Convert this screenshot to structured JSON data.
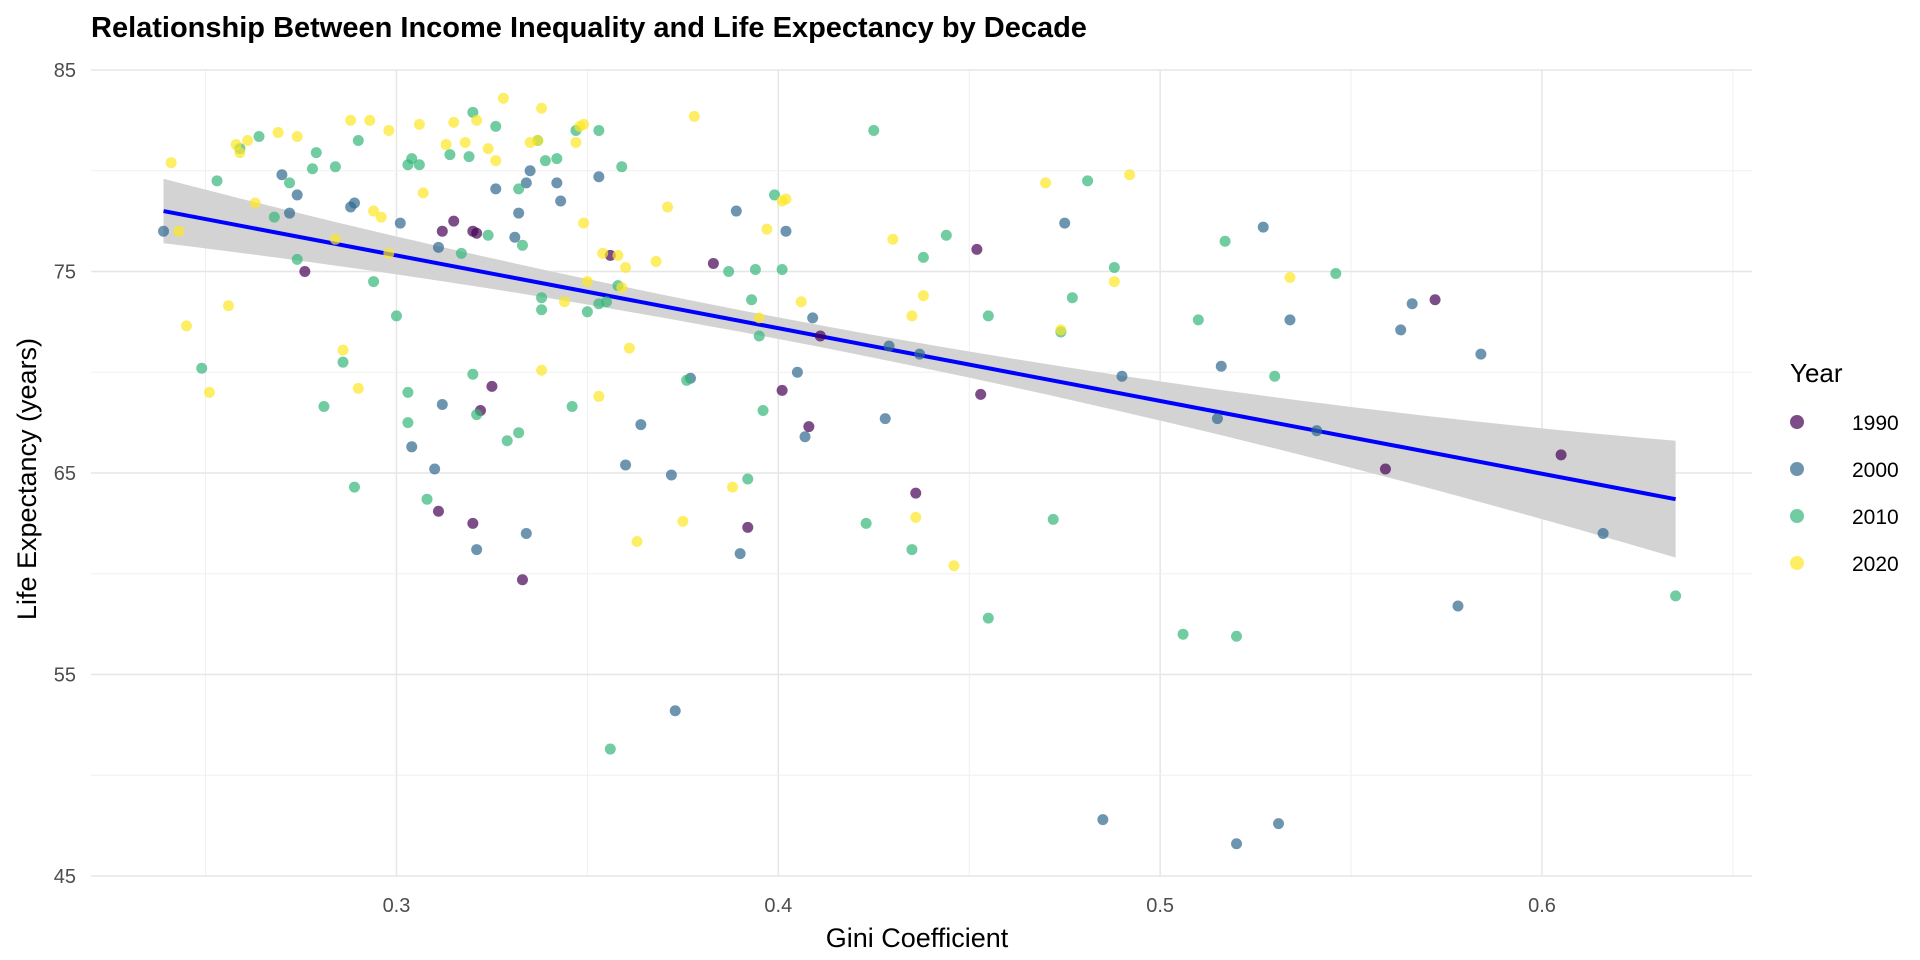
{
  "chart_data": {
    "type": "scatter",
    "title": "Relationship Between Income Inequality and Life Expectancy by Decade",
    "xlabel": "Gini Coefficient",
    "ylabel": "Life Expectancy (years)",
    "xlim": [
      0.22,
      0.655
    ],
    "ylim": [
      45,
      85
    ],
    "x_ticks": [
      0.3,
      0.4,
      0.5,
      0.6
    ],
    "x_tick_labels": [
      "0.3",
      "0.4",
      "0.5",
      "0.6"
    ],
    "y_ticks": [
      45,
      55,
      65,
      75,
      85
    ],
    "y_tick_labels": [
      "45",
      "55",
      "65",
      "75",
      "85"
    ],
    "grid": true,
    "legend": {
      "title": "Year",
      "placement": "right"
    },
    "point_alpha": 0.7,
    "series": [
      {
        "name": "1990",
        "color": "#440154",
        "points": [
          [
            0.276,
            75.0
          ],
          [
            0.312,
            77.0
          ],
          [
            0.315,
            77.5
          ],
          [
            0.32,
            77.0
          ],
          [
            0.321,
            76.9
          ],
          [
            0.322,
            68.1
          ],
          [
            0.325,
            69.3
          ],
          [
            0.311,
            63.1
          ],
          [
            0.32,
            62.5
          ],
          [
            0.333,
            59.7
          ],
          [
            0.356,
            75.8
          ],
          [
            0.383,
            75.4
          ],
          [
            0.392,
            62.3
          ],
          [
            0.401,
            69.1
          ],
          [
            0.408,
            67.3
          ],
          [
            0.411,
            71.8
          ],
          [
            0.436,
            64.0
          ],
          [
            0.452,
            76.1
          ],
          [
            0.453,
            68.9
          ],
          [
            0.559,
            65.2
          ],
          [
            0.572,
            73.6
          ],
          [
            0.605,
            65.9
          ]
        ]
      },
      {
        "name": "2000",
        "color": "#31688e",
        "points": [
          [
            0.239,
            77.0
          ],
          [
            0.27,
            79.8
          ],
          [
            0.272,
            77.9
          ],
          [
            0.274,
            78.8
          ],
          [
            0.288,
            78.2
          ],
          [
            0.289,
            78.4
          ],
          [
            0.301,
            77.4
          ],
          [
            0.311,
            76.2
          ],
          [
            0.312,
            68.4
          ],
          [
            0.304,
            66.3
          ],
          [
            0.31,
            65.2
          ],
          [
            0.321,
            61.2
          ],
          [
            0.326,
            79.1
          ],
          [
            0.331,
            76.7
          ],
          [
            0.332,
            77.9
          ],
          [
            0.334,
            79.4
          ],
          [
            0.335,
            80.0
          ],
          [
            0.342,
            79.4
          ],
          [
            0.343,
            78.5
          ],
          [
            0.353,
            79.7
          ],
          [
            0.334,
            62.0
          ],
          [
            0.36,
            65.4
          ],
          [
            0.364,
            67.4
          ],
          [
            0.372,
            64.9
          ],
          [
            0.373,
            53.2
          ],
          [
            0.377,
            69.7
          ],
          [
            0.389,
            78.0
          ],
          [
            0.39,
            61.0
          ],
          [
            0.402,
            77.0
          ],
          [
            0.405,
            70.0
          ],
          [
            0.407,
            66.8
          ],
          [
            0.409,
            72.7
          ],
          [
            0.429,
            71.3
          ],
          [
            0.428,
            67.7
          ],
          [
            0.437,
            70.9
          ],
          [
            0.475,
            77.4
          ],
          [
            0.485,
            47.8
          ],
          [
            0.49,
            69.8
          ],
          [
            0.515,
            67.7
          ],
          [
            0.516,
            70.3
          ],
          [
            0.52,
            46.6
          ],
          [
            0.527,
            77.2
          ],
          [
            0.531,
            47.6
          ],
          [
            0.534,
            72.6
          ],
          [
            0.541,
            67.1
          ],
          [
            0.563,
            72.1
          ],
          [
            0.566,
            73.4
          ],
          [
            0.578,
            58.4
          ],
          [
            0.584,
            70.9
          ],
          [
            0.616,
            62.0
          ]
        ]
      },
      {
        "name": "2010",
        "color": "#35b779",
        "points": [
          [
            0.249,
            70.2
          ],
          [
            0.253,
            79.5
          ],
          [
            0.259,
            81.1
          ],
          [
            0.264,
            81.7
          ],
          [
            0.268,
            77.7
          ],
          [
            0.272,
            79.4
          ],
          [
            0.274,
            75.6
          ],
          [
            0.278,
            80.1
          ],
          [
            0.279,
            80.9
          ],
          [
            0.281,
            68.3
          ],
          [
            0.284,
            80.2
          ],
          [
            0.286,
            70.5
          ],
          [
            0.289,
            64.3
          ],
          [
            0.29,
            81.5
          ],
          [
            0.294,
            74.5
          ],
          [
            0.3,
            72.8
          ],
          [
            0.303,
            80.3
          ],
          [
            0.304,
            80.6
          ],
          [
            0.303,
            69.0
          ],
          [
            0.303,
            67.5
          ],
          [
            0.306,
            80.3
          ],
          [
            0.308,
            63.7
          ],
          [
            0.314,
            80.8
          ],
          [
            0.317,
            75.9
          ],
          [
            0.319,
            80.7
          ],
          [
            0.32,
            69.9
          ],
          [
            0.32,
            82.9
          ],
          [
            0.321,
            67.9
          ],
          [
            0.324,
            76.8
          ],
          [
            0.326,
            82.2
          ],
          [
            0.329,
            66.6
          ],
          [
            0.332,
            67.0
          ],
          [
            0.332,
            79.1
          ],
          [
            0.333,
            76.3
          ],
          [
            0.337,
            81.5
          ],
          [
            0.338,
            73.1
          ],
          [
            0.338,
            73.7
          ],
          [
            0.339,
            80.5
          ],
          [
            0.342,
            80.6
          ],
          [
            0.346,
            68.3
          ],
          [
            0.347,
            82.0
          ],
          [
            0.35,
            73.0
          ],
          [
            0.353,
            82.0
          ],
          [
            0.353,
            73.4
          ],
          [
            0.355,
            73.5
          ],
          [
            0.356,
            51.3
          ],
          [
            0.358,
            74.3
          ],
          [
            0.359,
            80.2
          ],
          [
            0.376,
            69.6
          ],
          [
            0.387,
            75.0
          ],
          [
            0.392,
            64.7
          ],
          [
            0.393,
            73.6
          ],
          [
            0.394,
            75.1
          ],
          [
            0.395,
            71.8
          ],
          [
            0.396,
            68.1
          ],
          [
            0.399,
            78.8
          ],
          [
            0.401,
            75.1
          ],
          [
            0.423,
            62.5
          ],
          [
            0.425,
            82.0
          ],
          [
            0.435,
            61.2
          ],
          [
            0.438,
            75.7
          ],
          [
            0.444,
            76.8
          ],
          [
            0.455,
            72.8
          ],
          [
            0.455,
            57.8
          ],
          [
            0.472,
            62.7
          ],
          [
            0.474,
            72.0
          ],
          [
            0.477,
            73.7
          ],
          [
            0.481,
            79.5
          ],
          [
            0.488,
            75.2
          ],
          [
            0.506,
            57.0
          ],
          [
            0.51,
            72.6
          ],
          [
            0.52,
            56.9
          ],
          [
            0.517,
            76.5
          ],
          [
            0.53,
            69.8
          ],
          [
            0.546,
            74.9
          ],
          [
            0.635,
            58.9
          ]
        ]
      },
      {
        "name": "2020",
        "color": "#fde725",
        "points": [
          [
            0.241,
            80.4
          ],
          [
            0.243,
            77.0
          ],
          [
            0.245,
            72.3
          ],
          [
            0.251,
            69.0
          ],
          [
            0.256,
            73.3
          ],
          [
            0.258,
            81.3
          ],
          [
            0.259,
            80.9
          ],
          [
            0.261,
            81.5
          ],
          [
            0.263,
            78.4
          ],
          [
            0.269,
            81.9
          ],
          [
            0.274,
            81.7
          ],
          [
            0.284,
            76.6
          ],
          [
            0.286,
            71.1
          ],
          [
            0.288,
            82.5
          ],
          [
            0.29,
            69.2
          ],
          [
            0.293,
            82.5
          ],
          [
            0.294,
            78.0
          ],
          [
            0.296,
            77.7
          ],
          [
            0.298,
            75.9
          ],
          [
            0.298,
            82.0
          ],
          [
            0.306,
            82.3
          ],
          [
            0.307,
            78.9
          ],
          [
            0.313,
            81.3
          ],
          [
            0.315,
            82.4
          ],
          [
            0.318,
            81.4
          ],
          [
            0.321,
            82.5
          ],
          [
            0.324,
            81.1
          ],
          [
            0.326,
            80.5
          ],
          [
            0.328,
            83.6
          ],
          [
            0.335,
            81.4
          ],
          [
            0.337,
            81.5
          ],
          [
            0.338,
            70.1
          ],
          [
            0.338,
            83.1
          ],
          [
            0.344,
            73.5
          ],
          [
            0.347,
            81.4
          ],
          [
            0.348,
            82.2
          ],
          [
            0.349,
            82.3
          ],
          [
            0.349,
            77.4
          ],
          [
            0.35,
            74.5
          ],
          [
            0.353,
            68.8
          ],
          [
            0.354,
            75.9
          ],
          [
            0.358,
            75.8
          ],
          [
            0.359,
            74.2
          ],
          [
            0.36,
            75.2
          ],
          [
            0.361,
            71.2
          ],
          [
            0.363,
            61.6
          ],
          [
            0.368,
            75.5
          ],
          [
            0.371,
            78.2
          ],
          [
            0.375,
            62.6
          ],
          [
            0.378,
            82.7
          ],
          [
            0.388,
            64.3
          ],
          [
            0.395,
            72.7
          ],
          [
            0.397,
            77.1
          ],
          [
            0.401,
            78.5
          ],
          [
            0.402,
            78.6
          ],
          [
            0.406,
            73.5
          ],
          [
            0.43,
            76.6
          ],
          [
            0.435,
            72.8
          ],
          [
            0.436,
            62.8
          ],
          [
            0.438,
            73.8
          ],
          [
            0.446,
            60.4
          ],
          [
            0.47,
            79.4
          ],
          [
            0.474,
            72.1
          ],
          [
            0.488,
            74.5
          ],
          [
            0.492,
            79.8
          ],
          [
            0.534,
            74.7
          ]
        ]
      }
    ],
    "trend_line": {
      "type": "linear",
      "color": "#0000ff",
      "x_range": [
        0.239,
        0.635
      ],
      "y_start": 78.0,
      "y_end": 63.7,
      "ci_band_color": "#d3d3d3",
      "ci_halfwidth_start": 1.6,
      "ci_halfwidth_mid": 0.6,
      "ci_halfwidth_end": 2.9
    }
  }
}
